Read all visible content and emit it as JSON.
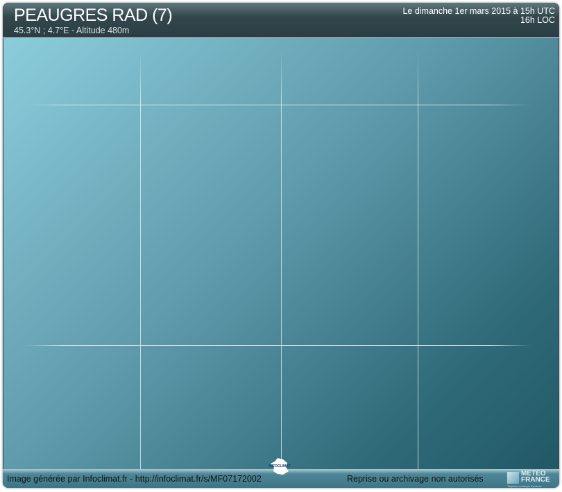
{
  "header": {
    "station": "PEAUGRES RAD (7)",
    "coords": "45.3°N ; 4.7°E - Altitude 480m",
    "date_utc": "Le dimanche 1er mars 2015 à 15h UTC",
    "time_loc": "16h LOC"
  },
  "footer": {
    "credit": "Image générée par Infoclimat.fr - http://infoclimat.fr/s/MF07172002",
    "rights": "Reprise ou archivage non autorisés"
  },
  "logos": {
    "infoclimat": "INFOCLIMAT",
    "meteofrance_line1": "METEO",
    "meteofrance_line2": "FRANCE",
    "meteofrance_tagline": "Toujours un temps d'avance"
  },
  "colors": {
    "plot_top_left": "#8ccddc",
    "plot_bottom_right": "#225866",
    "header": "#2b3d42"
  }
}
